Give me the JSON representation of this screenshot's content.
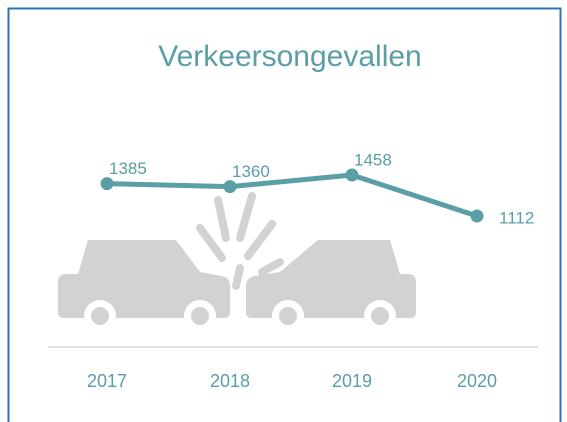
{
  "chart_data": {
    "type": "line",
    "title": "Verkeersongevallen",
    "categories": [
      "2017",
      "2018",
      "2019",
      "2020"
    ],
    "values": [
      1385,
      1360,
      1458,
      1112
    ],
    "color": "#5a9ea6"
  }
}
